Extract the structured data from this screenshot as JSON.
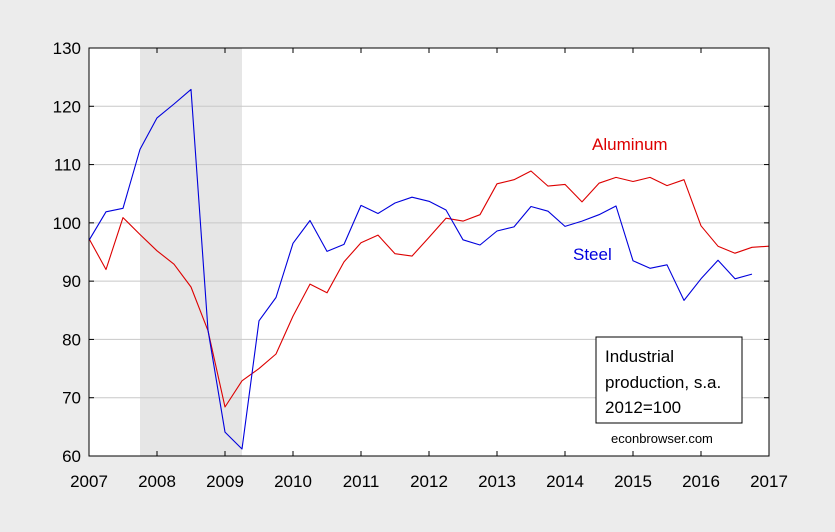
{
  "chart_data": {
    "type": "line",
    "title": "",
    "xlabel": "",
    "ylabel": "",
    "xlim": [
      2007.0,
      2017.0
    ],
    "ylim": [
      60,
      130
    ],
    "x_ticks": [
      "2007",
      "2008",
      "2009",
      "2010",
      "2011",
      "2012",
      "2013",
      "2014",
      "2015",
      "2016",
      "2017"
    ],
    "y_ticks": [
      "60",
      "70",
      "80",
      "90",
      "100",
      "110",
      "120",
      "130"
    ],
    "grid": "horizontal",
    "recession_shading": {
      "start": 2007.75,
      "end": 2009.25,
      "color": "#E6E6E6"
    },
    "series": [
      {
        "name": "Aluminum",
        "color": "#DD0000",
        "x": [
          2007.0,
          2007.25,
          2007.5,
          2007.75,
          2008.0,
          2008.25,
          2008.5,
          2008.75,
          2009.0,
          2009.25,
          2009.5,
          2009.75,
          2010.0,
          2010.25,
          2010.5,
          2010.75,
          2011.0,
          2011.25,
          2011.5,
          2011.75,
          2012.0,
          2012.25,
          2012.5,
          2012.75,
          2013.0,
          2013.25,
          2013.5,
          2013.75,
          2014.0,
          2014.25,
          2014.5,
          2014.75,
          2015.0,
          2015.25,
          2015.5,
          2015.75,
          2016.0,
          2016.25,
          2016.5,
          2016.75,
          2017.0
        ],
        "values": [
          97.3,
          92.0,
          100.9,
          98.0,
          95.2,
          92.9,
          89.0,
          81.5,
          68.4,
          72.9,
          75.0,
          77.5,
          84.0,
          89.5,
          88.0,
          93.3,
          96.6,
          97.9,
          94.7,
          94.3,
          97.5,
          100.8,
          100.3,
          101.4,
          106.7,
          107.4,
          108.9,
          106.3,
          106.6,
          103.6,
          106.8,
          107.8,
          107.1,
          107.8,
          106.4,
          107.4,
          99.5,
          96.0,
          94.8,
          95.8,
          96.0
        ]
      },
      {
        "name": "Steel",
        "color": "#0000DD",
        "x": [
          2007.0,
          2007.25,
          2007.5,
          2007.75,
          2008.0,
          2008.25,
          2008.5,
          2008.75,
          2009.0,
          2009.25,
          2009.5,
          2009.75,
          2010.0,
          2010.25,
          2010.5,
          2010.75,
          2011.0,
          2011.25,
          2011.5,
          2011.75,
          2012.0,
          2012.25,
          2012.5,
          2012.75,
          2013.0,
          2013.25,
          2013.5,
          2013.75,
          2014.0,
          2014.25,
          2014.5,
          2014.75,
          2015.0,
          2015.25,
          2015.5,
          2015.75,
          2016.0,
          2016.25,
          2016.5,
          2016.75
        ],
        "values": [
          97.0,
          101.9,
          102.5,
          112.6,
          118.0,
          120.4,
          122.9,
          81.6,
          64.1,
          61.2,
          83.2,
          87.2,
          96.5,
          100.4,
          95.1,
          96.3,
          103.0,
          101.6,
          103.4,
          104.4,
          103.7,
          102.2,
          97.1,
          96.2,
          98.6,
          99.3,
          102.8,
          102.0,
          99.4,
          100.3,
          101.4,
          102.9,
          93.5,
          92.2,
          92.8,
          86.7,
          90.4,
          93.6,
          90.4,
          91.2
        ]
      }
    ],
    "series_labels": [
      "Aluminum",
      "Steel"
    ],
    "annotation_box": {
      "lines": [
        "Industrial",
        "production, s.a.",
        "2012=100"
      ]
    },
    "source_text": "econbrowser.com"
  }
}
